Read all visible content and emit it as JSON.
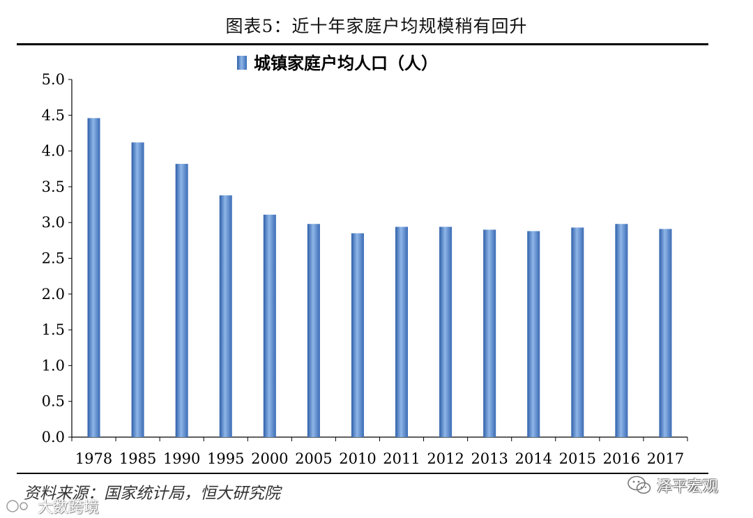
{
  "figure": {
    "title": "图表5：近十年家庭户均规模稍有回升",
    "source": "资料来源：国家统计局，恒大研究院",
    "brand": "泽平宏观",
    "watermark": "大数跨境"
  },
  "chart_data": {
    "type": "bar",
    "title": "",
    "legend": {
      "position": "top-center",
      "entries": [
        "城镇家庭户均人口（人）"
      ]
    },
    "categories": [
      "1978",
      "1985",
      "1990",
      "1995",
      "2000",
      "2005",
      "2010",
      "2011",
      "2012",
      "2013",
      "2014",
      "2015",
      "2016",
      "2017"
    ],
    "series": [
      {
        "name": "城镇家庭户均人口（人）",
        "values": [
          4.46,
          4.12,
          3.82,
          3.38,
          3.11,
          2.98,
          2.85,
          2.94,
          2.94,
          2.9,
          2.88,
          2.93,
          2.98,
          2.91
        ]
      }
    ],
    "ylim": [
      0,
      5
    ],
    "yticks": [
      "0.0",
      "0.5",
      "1.0",
      "1.5",
      "2.0",
      "2.5",
      "3.0",
      "3.5",
      "4.0",
      "4.5",
      "5.0"
    ],
    "grid": false,
    "colors": {
      "bar_light": "#8fb6e8",
      "bar_mid": "#4a7fc8",
      "bar_dark": "#2e5fa8",
      "axis": "#000000"
    }
  }
}
